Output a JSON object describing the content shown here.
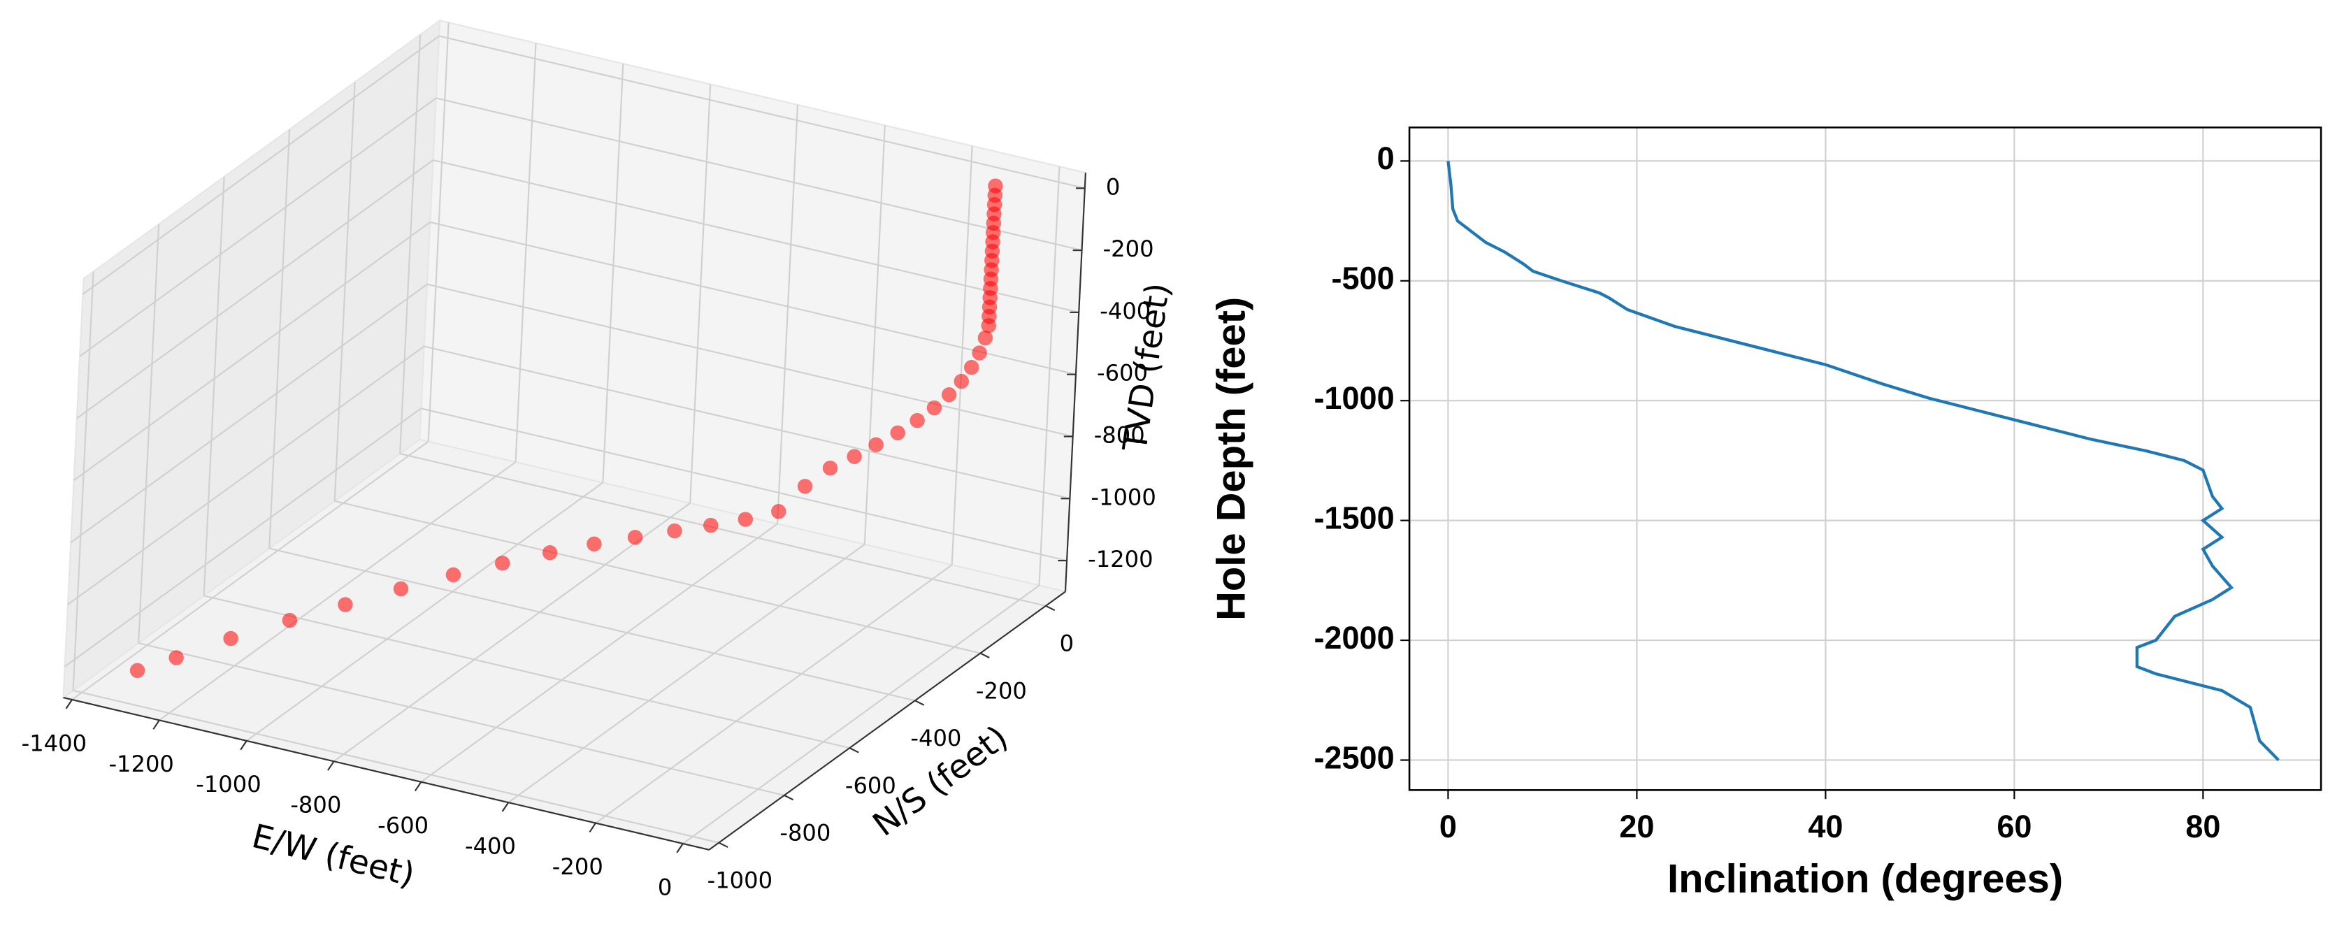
{
  "chart_data": [
    {
      "type": "scatter3d",
      "xlabel": "E/W (feet)",
      "ylabel": "N/S (feet)",
      "zlabel": "TVD (feet)",
      "color": "#ff0000",
      "grid": true,
      "x": [
        -100,
        -100,
        -100,
        -100,
        -100,
        -100,
        -100,
        -100,
        -100,
        -100,
        -100,
        -100,
        -100,
        -100,
        -100,
        -100,
        -105,
        -115,
        -130,
        -150,
        -175,
        -205,
        -240,
        -280,
        -325,
        -370,
        -420,
        -470,
        -520,
        -580,
        -640,
        -700,
        -760,
        -820,
        -880,
        -940,
        -1000,
        -1060,
        -1120,
        -1180,
        -1240,
        -1290,
        -1328
      ],
      "y": [
        0,
        0,
        0,
        0,
        0,
        0,
        0,
        0,
        0,
        0,
        0,
        0,
        0,
        0,
        0,
        0,
        -2,
        -4,
        -6,
        -8,
        -10,
        -13,
        -16,
        -20,
        -24,
        -28,
        -33,
        -40,
        -50,
        -70,
        -95,
        -125,
        -165,
        -210,
        -265,
        -330,
        -400,
        -480,
        -570,
        -660,
        -760,
        -860,
        -928
      ],
      "z": [
        0,
        -30,
        -60,
        -90,
        -120,
        -150,
        -180,
        -210,
        -240,
        -270,
        -300,
        -330,
        -360,
        -390,
        -420,
        -450,
        -490,
        -540,
        -590,
        -640,
        -690,
        -740,
        -790,
        -840,
        -890,
        -940,
        -990,
        -1060,
        -1150,
        -1180,
        -1200,
        -1215,
        -1225,
        -1232,
        -1238,
        -1242,
        -1246,
        -1250,
        -1252,
        -1254,
        -1256,
        -1258,
        -1260
      ],
      "xlim": [
        -1420,
        60
      ],
      "ylim": [
        -1030,
        60
      ],
      "zlim": [
        -1300,
        50
      ],
      "xticks": [
        -1400,
        -1200,
        -1000,
        -800,
        -600,
        -400,
        -200,
        0
      ],
      "yticks": [
        -1000,
        -800,
        -600,
        -400,
        -200,
        0
      ],
      "zticks": [
        -1200,
        -1000,
        -800,
        -600,
        -400,
        -200,
        0
      ]
    },
    {
      "type": "line",
      "xlabel": "Inclination (degrees)",
      "ylabel": "Hole Depth (feet)",
      "color": "#1f77b4",
      "grid": true,
      "x": [
        0,
        0.3,
        0.5,
        1,
        2,
        4,
        6,
        8,
        9,
        12,
        16,
        17,
        19,
        24,
        30,
        36,
        40,
        46,
        51,
        56,
        62,
        68,
        74,
        78,
        80,
        81,
        82,
        80,
        82,
        80,
        81,
        83,
        81,
        77,
        76,
        75,
        73,
        73,
        75,
        82,
        85,
        86,
        88
      ],
      "values": [
        0,
        -100,
        -200,
        -250,
        -280,
        -340,
        -380,
        -430,
        -460,
        -500,
        -550,
        -570,
        -620,
        -690,
        -750,
        -810,
        -850,
        -930,
        -990,
        -1040,
        -1100,
        -1160,
        -1210,
        -1250,
        -1290,
        -1400,
        -1450,
        -1500,
        -1570,
        -1620,
        -1690,
        -1780,
        -1830,
        -1900,
        -1950,
        -2000,
        -2030,
        -2110,
        -2140,
        -2210,
        -2280,
        -2420,
        -2500
      ],
      "xlim": [
        -4.1,
        92.5
      ],
      "ylim": [
        -2625,
        140
      ],
      "xticks": [
        0,
        20,
        40,
        60,
        80
      ],
      "yticks": [
        0,
        -500,
        -1000,
        -1500,
        -2000,
        -2500
      ]
    }
  ]
}
